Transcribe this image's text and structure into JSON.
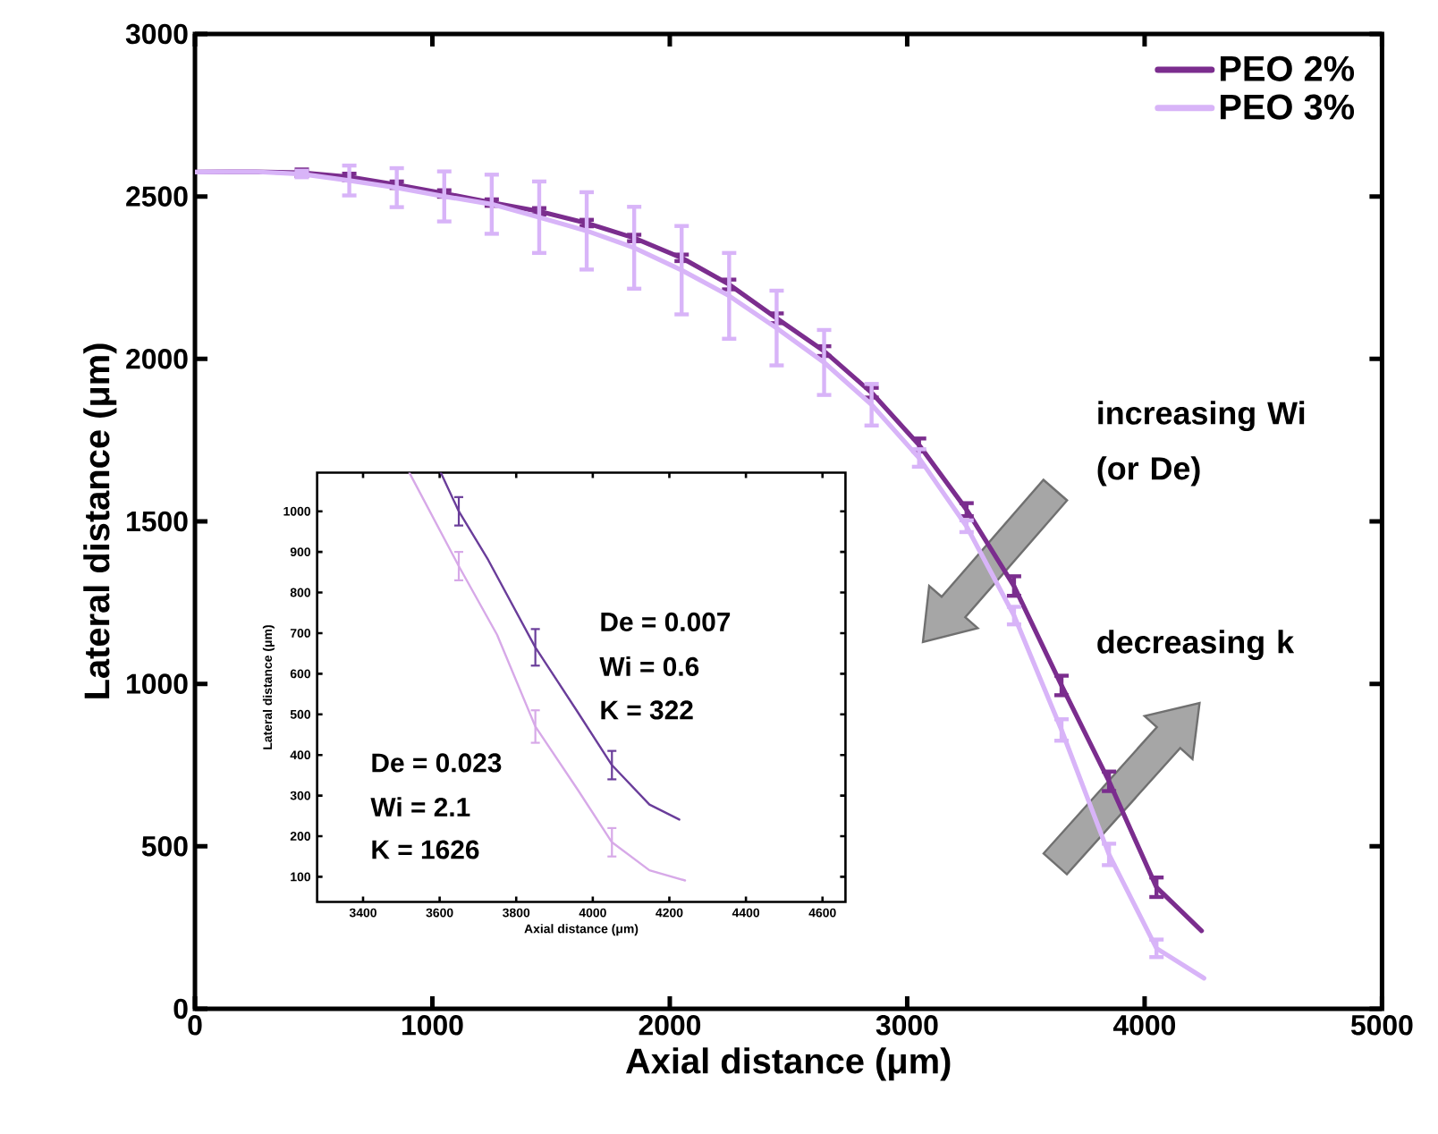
{
  "chart_data": [
    {
      "type": "line",
      "xlabel": "Axial distance (μm)",
      "ylabel": "Lateral distance (μm)",
      "xlim": [
        0,
        5000
      ],
      "ylim": [
        0,
        3000
      ],
      "xticks": [
        0,
        1000,
        2000,
        3000,
        4000,
        5000
      ],
      "yticks": [
        0,
        500,
        1000,
        1500,
        2000,
        2500,
        3000
      ],
      "legend": "top right",
      "annotations": [
        "increasing Wi (or De)",
        "decreasing k"
      ],
      "series": [
        {
          "name": "PEO 2%",
          "color": "#7b2d8e",
          "x": [
            0,
            250,
            450,
            650,
            850,
            1050,
            1250,
            1450,
            1650,
            1850,
            2050,
            2250,
            2450,
            2650,
            2850,
            3050,
            3250,
            3450,
            3650,
            3850,
            4050,
            4240
          ],
          "values": [
            2575,
            2576,
            2573,
            2560,
            2536,
            2509,
            2481,
            2454,
            2418,
            2372,
            2311,
            2229,
            2125,
            2024,
            1896,
            1735,
            1536,
            1301,
            995,
            700,
            374,
            240
          ],
          "errors": [
            null,
            null,
            10,
            10,
            10,
            10,
            10,
            10,
            10,
            10,
            10,
            15,
            15,
            15,
            15,
            20,
            20,
            30,
            30,
            30,
            30,
            null
          ]
        },
        {
          "name": "PEO 3%",
          "color": "#d8b4f8",
          "x": [
            0,
            250,
            450,
            650,
            850,
            1050,
            1250,
            1450,
            1650,
            1850,
            2050,
            2250,
            2450,
            2650,
            2850,
            3050,
            3250,
            3450,
            3650,
            3850,
            4050,
            4250
          ],
          "values": [
            2575,
            2576,
            2569,
            2549,
            2527,
            2500,
            2476,
            2436,
            2394,
            2342,
            2273,
            2194,
            2095,
            1989,
            1859,
            1695,
            1485,
            1210,
            858,
            475,
            186,
            94
          ],
          "errors": [
            null,
            null,
            10,
            46,
            60,
            77,
            91,
            110,
            119,
            126,
            136,
            132,
            115,
            100,
            64,
            27,
            18,
            27,
            33,
            33,
            27,
            null
          ]
        }
      ]
    },
    {
      "type": "line",
      "xlabel": "Axial distance (μm)",
      "ylabel": "Lateral distance (μm)",
      "xlim": [
        3280,
        4660
      ],
      "ylim": [
        38,
        1095
      ],
      "xticks": [
        3400,
        3600,
        3800,
        4000,
        4200,
        4400,
        4600
      ],
      "yticks": [
        100,
        200,
        300,
        400,
        500,
        600,
        700,
        800,
        900,
        1000
      ],
      "annotations": [
        "De = 0.007",
        "Wi = 0.6",
        "K = 322",
        "De = 0.023",
        "Wi = 2.1",
        "K = 1626"
      ],
      "series": [
        {
          "color": "#6a3d9a",
          "x": [
            3603,
            3650,
            3727,
            3850,
            3961,
            4050,
            4148,
            4226
          ],
          "values": [
            1095,
            1000,
            880,
            665,
            505,
            375,
            278,
            241
          ],
          "errors": [
            null,
            35,
            null,
            45,
            null,
            35,
            null,
            null
          ]
        },
        {
          "color": "#d7a9e8",
          "x": [
            3521,
            3650,
            3750,
            3850,
            3961,
            4050,
            4148,
            4241
          ],
          "values": [
            1095,
            865,
            696,
            470,
            314,
            185,
            116,
            91
          ],
          "errors": [
            null,
            35,
            null,
            40,
            null,
            35,
            null,
            null
          ]
        }
      ]
    }
  ]
}
